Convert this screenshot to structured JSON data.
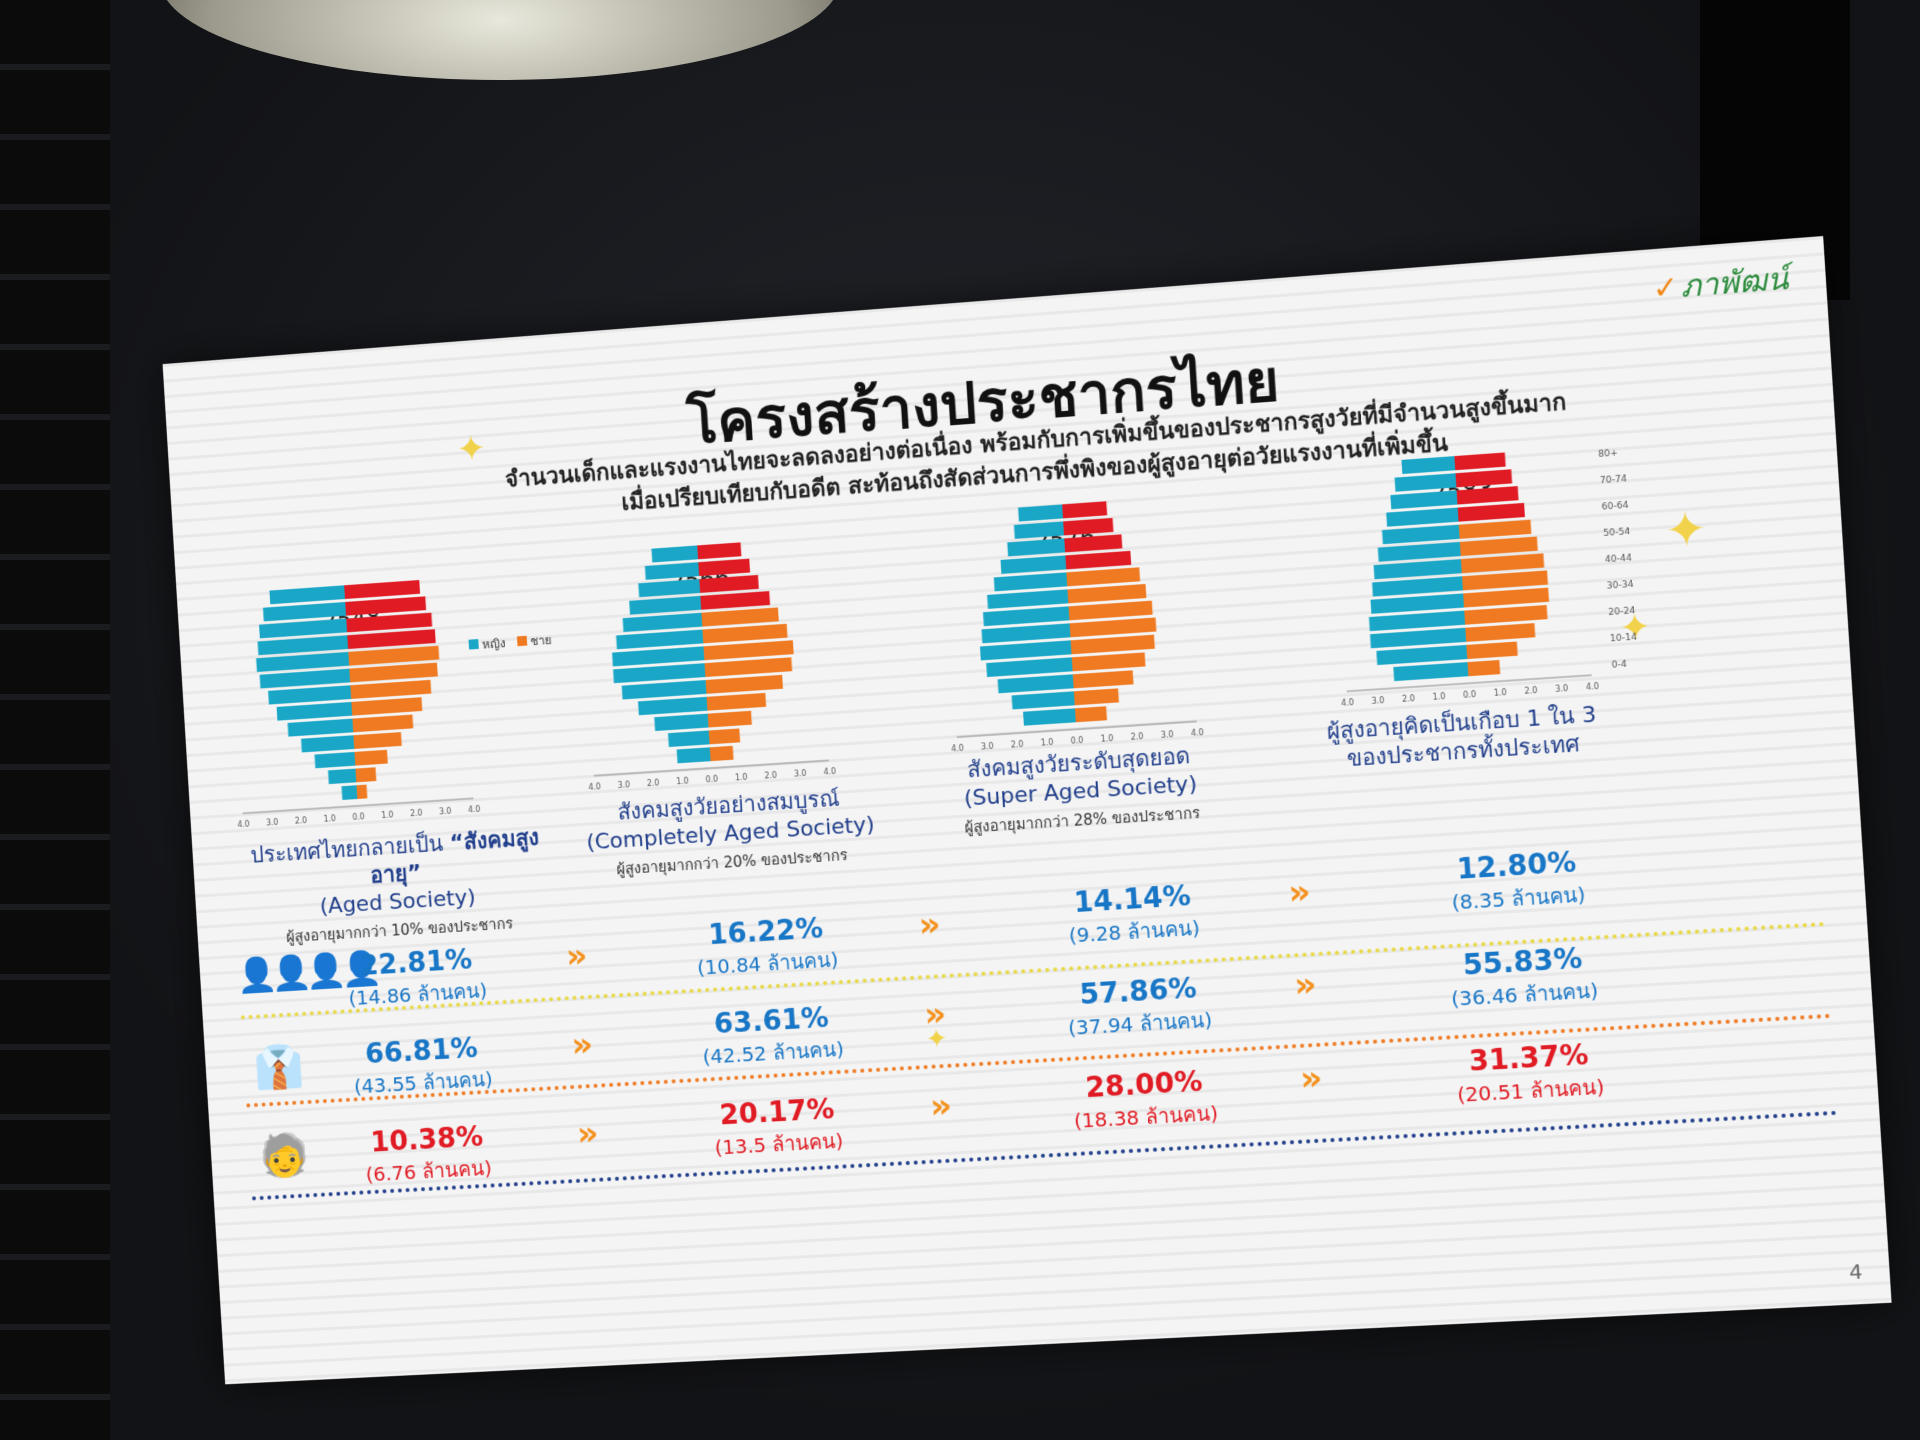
{
  "slide": {
    "logo": "ภาพัฒน์",
    "title": "โครงสร้างประชากรไทย",
    "subtitle_line1": "จำนวนเด็กและแรงงานไทยจะลดลงอย่างต่อเนื่อง พร้อมกับการเพิ่มขึ้นของประชากรสูงวัยที่มีจำนวนสูงขึ้นมาก",
    "subtitle_line2": "เมื่อเปรียบเทียบกับอดีต สะท้อนถึงสัดส่วนการพึ่งพิงของผู้สูงอายุต่อวัยแรงงานที่เพิ่มขึ้น",
    "legend_female": "หญิง",
    "legend_male": "ชาย",
    "page_number": "4"
  },
  "colors": {
    "female": "#1aa7c7",
    "male_working": "#f07a22",
    "male_elderly": "#e01b24",
    "blue": "#1876c6",
    "red": "#e01b24",
    "arrow": "#f39220"
  },
  "pyramids": [
    {
      "year": "2548",
      "caption_pre": "ประเทศไทยกลายเป็น ",
      "caption_bold": "“สังคมสูงอายุ”",
      "caption_en": "(Aged Society)",
      "caption_note": "ผู้สูงอายุมากกว่า 10% ของประชากร",
      "female": [
        0.6,
        1.1,
        1.6,
        2.1,
        2.6,
        3.0,
        3.3,
        3.6,
        3.7,
        3.6,
        3.5,
        3.3,
        3.0
      ],
      "male": [
        0.4,
        0.8,
        1.3,
        1.9,
        2.4,
        2.8,
        3.2,
        3.5,
        3.6,
        3.5,
        3.4,
        3.2,
        3.0
      ]
    },
    {
      "year": "2566",
      "caption_pre": "สังคมสูงวัยอย่างสมบูรณ์",
      "caption_bold": "",
      "caption_en": "(Completely Aged Society)",
      "caption_note": "ผู้สูงอายุมากกว่า 20% ของประชากร",
      "female": [
        1.3,
        1.6,
        2.1,
        2.7,
        3.3,
        3.6,
        3.6,
        3.4,
        3.1,
        2.8,
        2.4,
        2.1,
        1.8
      ],
      "male": [
        0.9,
        1.2,
        1.7,
        2.3,
        3.0,
        3.4,
        3.5,
        3.3,
        3.0,
        2.7,
        2.3,
        2.0,
        1.7
      ]
    },
    {
      "year": "2576",
      "caption_pre": "สังคมสูงวัยระดับสุดยอด",
      "caption_bold": "",
      "caption_en": "(Super Aged Society)",
      "caption_note": "ผู้สูงอายุมากกว่า 28% ของประชากร",
      "female": [
        2.0,
        2.4,
        2.9,
        3.3,
        3.5,
        3.4,
        3.3,
        3.1,
        2.8,
        2.5,
        2.2,
        1.9,
        1.7
      ],
      "male": [
        1.2,
        1.7,
        2.3,
        2.8,
        3.2,
        3.3,
        3.2,
        3.0,
        2.8,
        2.5,
        2.2,
        1.9,
        1.7
      ]
    },
    {
      "year": "2583",
      "caption_pre": "ผู้สูงอายุคิดเป็นเกือบ 1 ใน 3",
      "caption_bold": "",
      "caption_en": "ของประชากรทั้งประเทศ",
      "caption_note": "",
      "female": [
        2.8,
        3.4,
        3.6,
        3.6,
        3.5,
        3.4,
        3.3,
        3.1,
        2.9,
        2.7,
        2.5,
        2.3,
        2.0
      ],
      "male": [
        1.2,
        1.9,
        2.6,
        3.1,
        3.2,
        3.2,
        3.1,
        2.9,
        2.7,
        2.5,
        2.3,
        2.1,
        1.9
      ]
    }
  ],
  "age_ticks": [
    "80+",
    "70-74",
    "60-64",
    "50-54",
    "40-44",
    "30-34",
    "20-24",
    "10-14",
    "0-4"
  ],
  "axis_ticks": [
    "4.0",
    "3.0",
    "2.0",
    "1.0",
    "0.0",
    "1.0",
    "2.0",
    "3.0",
    "4.0"
  ],
  "stats": {
    "children": [
      {
        "pct": "22.81%",
        "count": "(14.86 ล้านคน)"
      },
      {
        "pct": "16.22%",
        "count": "(10.84 ล้านคน)"
      },
      {
        "pct": "14.14%",
        "count": "(9.28 ล้านคน)"
      },
      {
        "pct": "12.80%",
        "count": "(8.35 ล้านคน)"
      }
    ],
    "working": [
      {
        "pct": "66.81%",
        "count": "(43.55 ล้านคน)"
      },
      {
        "pct": "63.61%",
        "count": "(42.52 ล้านคน)"
      },
      {
        "pct": "57.86%",
        "count": "(37.94 ล้านคน)"
      },
      {
        "pct": "55.83%",
        "count": "(36.46 ล้านคน)"
      }
    ],
    "elderly": [
      {
        "pct": "10.38%",
        "count": "(6.76 ล้านคน)"
      },
      {
        "pct": "20.17%",
        "count": "(13.5 ล้านคน)"
      },
      {
        "pct": "28.00%",
        "count": "(18.38 ล้านคน)"
      },
      {
        "pct": "31.37%",
        "count": "(20.51 ล้านคน)"
      }
    ]
  },
  "icons": {
    "children": "children-group-icon",
    "working": "worker-icon",
    "elderly": "elderly-person-icon",
    "arrow": "double-chevron-icon",
    "sparkle": "sparkle-icon"
  },
  "arrow_glyph": "»"
}
